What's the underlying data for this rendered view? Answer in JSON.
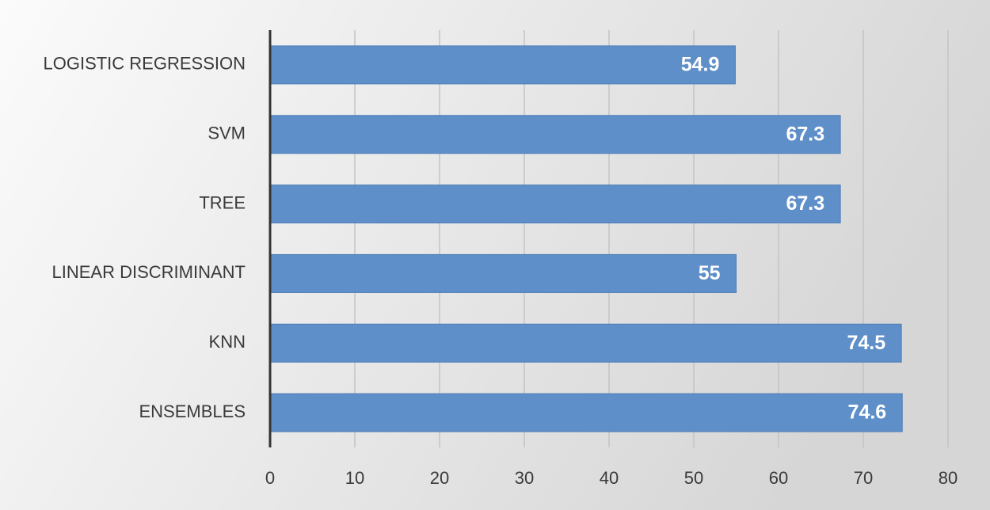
{
  "chart_data": {
    "type": "bar",
    "orientation": "horizontal",
    "categories": [
      "LOGISTIC REGRESSION",
      "SVM",
      "TREE",
      "LINEAR DISCRIMINANT",
      "KNN",
      "ENSEMBLES"
    ],
    "values": [
      54.9,
      67.3,
      67.3,
      55,
      74.5,
      74.6
    ],
    "color": "#5f8fc8",
    "xlim": [
      0,
      80
    ],
    "xticks": [
      0,
      10,
      20,
      30,
      40,
      50,
      60,
      70,
      80
    ],
    "grid": true
  }
}
